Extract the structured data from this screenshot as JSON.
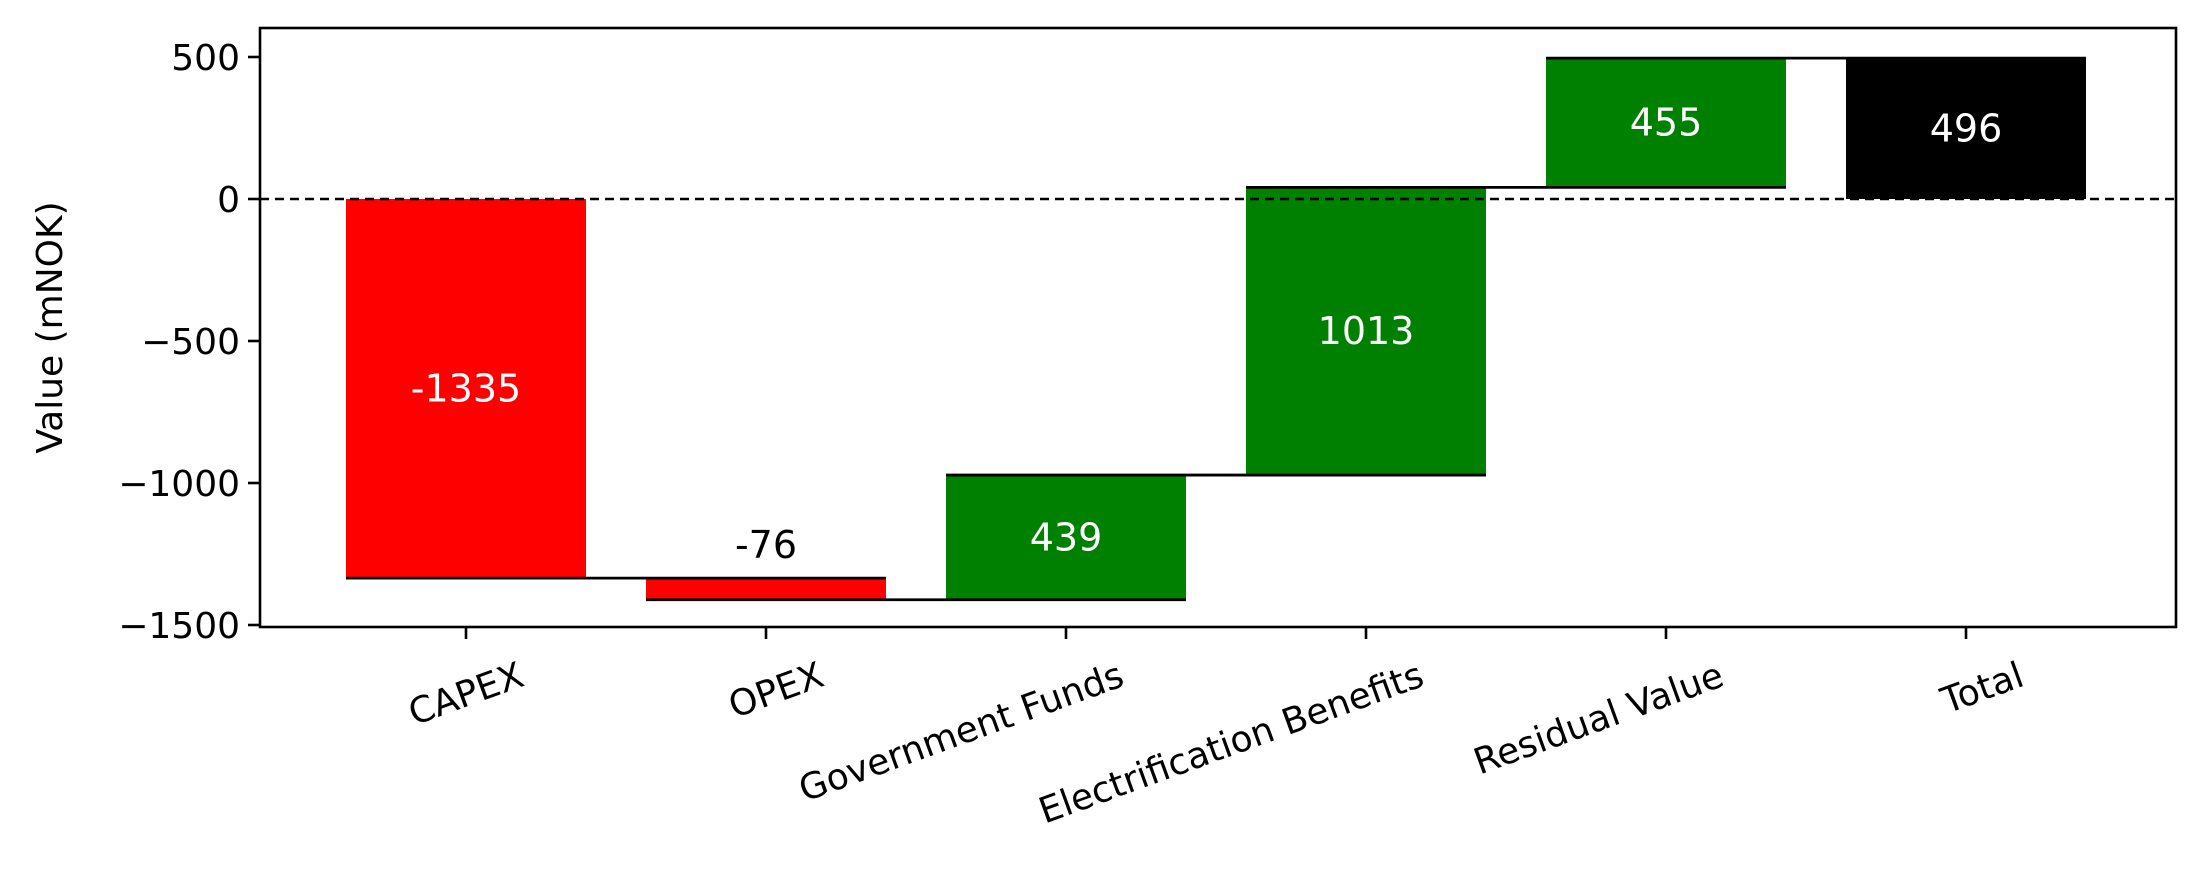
{
  "chart_data": {
    "type": "waterfall",
    "title": "",
    "xlabel": "",
    "ylabel": "Value (mNOK)",
    "ylim": [
      -1500,
      500
    ],
    "yticks": [
      500,
      0,
      -500,
      -1000,
      -1500
    ],
    "ytick_labels": [
      "500",
      "0",
      "−500",
      "−1000",
      "−1500"
    ],
    "categories": [
      "CAPEX",
      "OPEX",
      "Government Funds",
      "Electrification Benefits",
      "Residual Value",
      "Total"
    ],
    "values": [
      -1335,
      -76,
      439,
      1013,
      455,
      496
    ],
    "value_labels": [
      "-1335",
      "-76",
      "439",
      "1013",
      "455",
      "496"
    ],
    "bar_kinds": [
      "change",
      "change",
      "change",
      "change",
      "change",
      "total"
    ],
    "x_tick_rotation_deg": 20,
    "zero_line": "dashed",
    "connector_lines": true,
    "grid": false,
    "colors": {
      "negative": "#ff0000",
      "positive": "#008000",
      "total": "#000000",
      "label_on_bar": "#ffffff",
      "label_outside": "#000000",
      "axis": "#000000"
    }
  }
}
